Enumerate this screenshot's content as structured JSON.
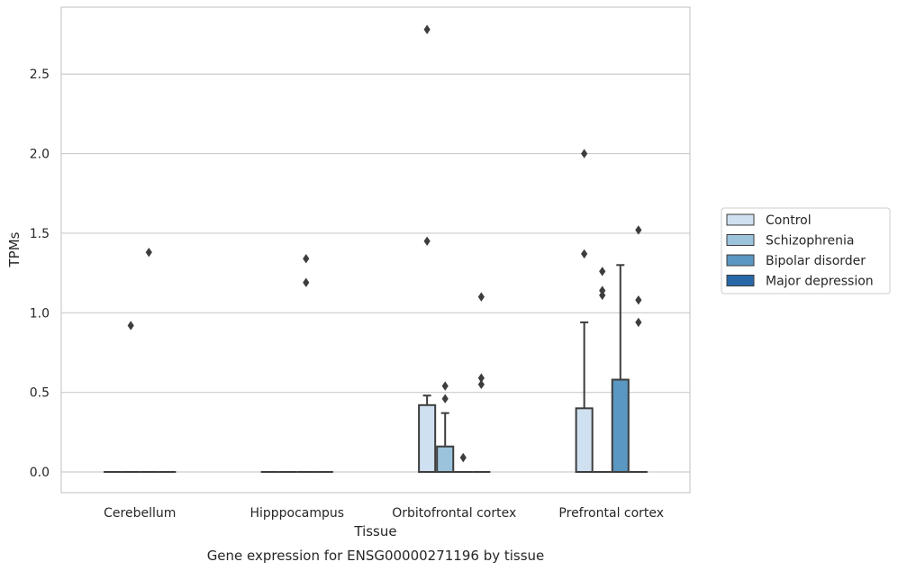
{
  "chart_data": {
    "type": "box",
    "title": "",
    "caption": "Gene expression for ENSG00000271196 by tissue",
    "xlabel": "Tissue",
    "ylabel": "TPMs",
    "ylim": [
      -0.13,
      2.92
    ],
    "yticks": [
      0.0,
      0.5,
      1.0,
      1.5,
      2.0,
      2.5
    ],
    "ytick_labels": [
      "0.0",
      "0.5",
      "1.0",
      "1.5",
      "2.0",
      "2.5"
    ],
    "grid": "horizontal",
    "legend_position": "right",
    "categories": [
      "Cerebellum",
      "Hipppocampus",
      "Orbitofrontal cortex",
      "Prefrontal cortex"
    ],
    "series": [
      {
        "name": "Control",
        "color": "#cfe0f0",
        "boxes": [
          {
            "q1": 0,
            "median": 0,
            "q3": 0,
            "whisker_low": 0,
            "whisker_high": 0,
            "outliers": []
          },
          {
            "q1": 0,
            "median": 0,
            "q3": 0,
            "whisker_low": 0,
            "whisker_high": 0,
            "outliers": []
          },
          {
            "q1": 0,
            "median": 0,
            "q3": 0.42,
            "whisker_low": 0,
            "whisker_high": 0.48,
            "outliers": [
              1.45,
              2.78
            ]
          },
          {
            "q1": 0,
            "median": 0,
            "q3": 0.4,
            "whisker_low": 0,
            "whisker_high": 0.94,
            "outliers": [
              1.37,
              2.0
            ]
          }
        ]
      },
      {
        "name": "Schizophrenia",
        "color": "#9cc3dc",
        "boxes": [
          {
            "q1": 0,
            "median": 0,
            "q3": 0,
            "whisker_low": 0,
            "whisker_high": 0,
            "outliers": [
              0.92
            ]
          },
          {
            "q1": 0,
            "median": 0,
            "q3": 0,
            "whisker_low": 0,
            "whisker_high": 0,
            "outliers": []
          },
          {
            "q1": 0,
            "median": 0,
            "q3": 0.16,
            "whisker_low": 0,
            "whisker_high": 0.37,
            "outliers": [
              0.46,
              0.54
            ]
          },
          {
            "q1": 0,
            "median": 0,
            "q3": 0,
            "whisker_low": 0,
            "whisker_high": 0,
            "outliers": [
              1.11,
              1.14,
              1.26
            ]
          }
        ]
      },
      {
        "name": "Bipolar disorder",
        "color": "#5a97c1",
        "boxes": [
          {
            "q1": 0,
            "median": 0,
            "q3": 0,
            "whisker_low": 0,
            "whisker_high": 0,
            "outliers": [
              1.38
            ]
          },
          {
            "q1": 0,
            "median": 0,
            "q3": 0,
            "whisker_low": 0,
            "whisker_high": 0,
            "outliers": [
              1.19,
              1.34
            ]
          },
          {
            "q1": 0,
            "median": 0,
            "q3": 0,
            "whisker_low": 0,
            "whisker_high": 0,
            "outliers": [
              0.09
            ]
          },
          {
            "q1": 0,
            "median": 0,
            "q3": 0.58,
            "whisker_low": 0,
            "whisker_high": 1.3,
            "outliers": []
          }
        ]
      },
      {
        "name": "Major depression",
        "color": "#2868a6",
        "boxes": [
          {
            "q1": 0,
            "median": 0,
            "q3": 0,
            "whisker_low": 0,
            "whisker_high": 0,
            "outliers": []
          },
          {
            "q1": 0,
            "median": 0,
            "q3": 0,
            "whisker_low": 0,
            "whisker_high": 0,
            "outliers": []
          },
          {
            "q1": 0,
            "median": 0,
            "q3": 0,
            "whisker_low": 0,
            "whisker_high": 0,
            "outliers": [
              0.55,
              0.59,
              1.1
            ]
          },
          {
            "q1": 0,
            "median": 0,
            "q3": 0,
            "whisker_low": 0,
            "whisker_high": 0,
            "outliers": [
              0.94,
              1.08,
              1.52
            ]
          }
        ]
      }
    ],
    "colors": {
      "axis": "#cccccc",
      "grid": "#cccccc",
      "line": "#3d3d3d",
      "text": "#262626"
    }
  }
}
